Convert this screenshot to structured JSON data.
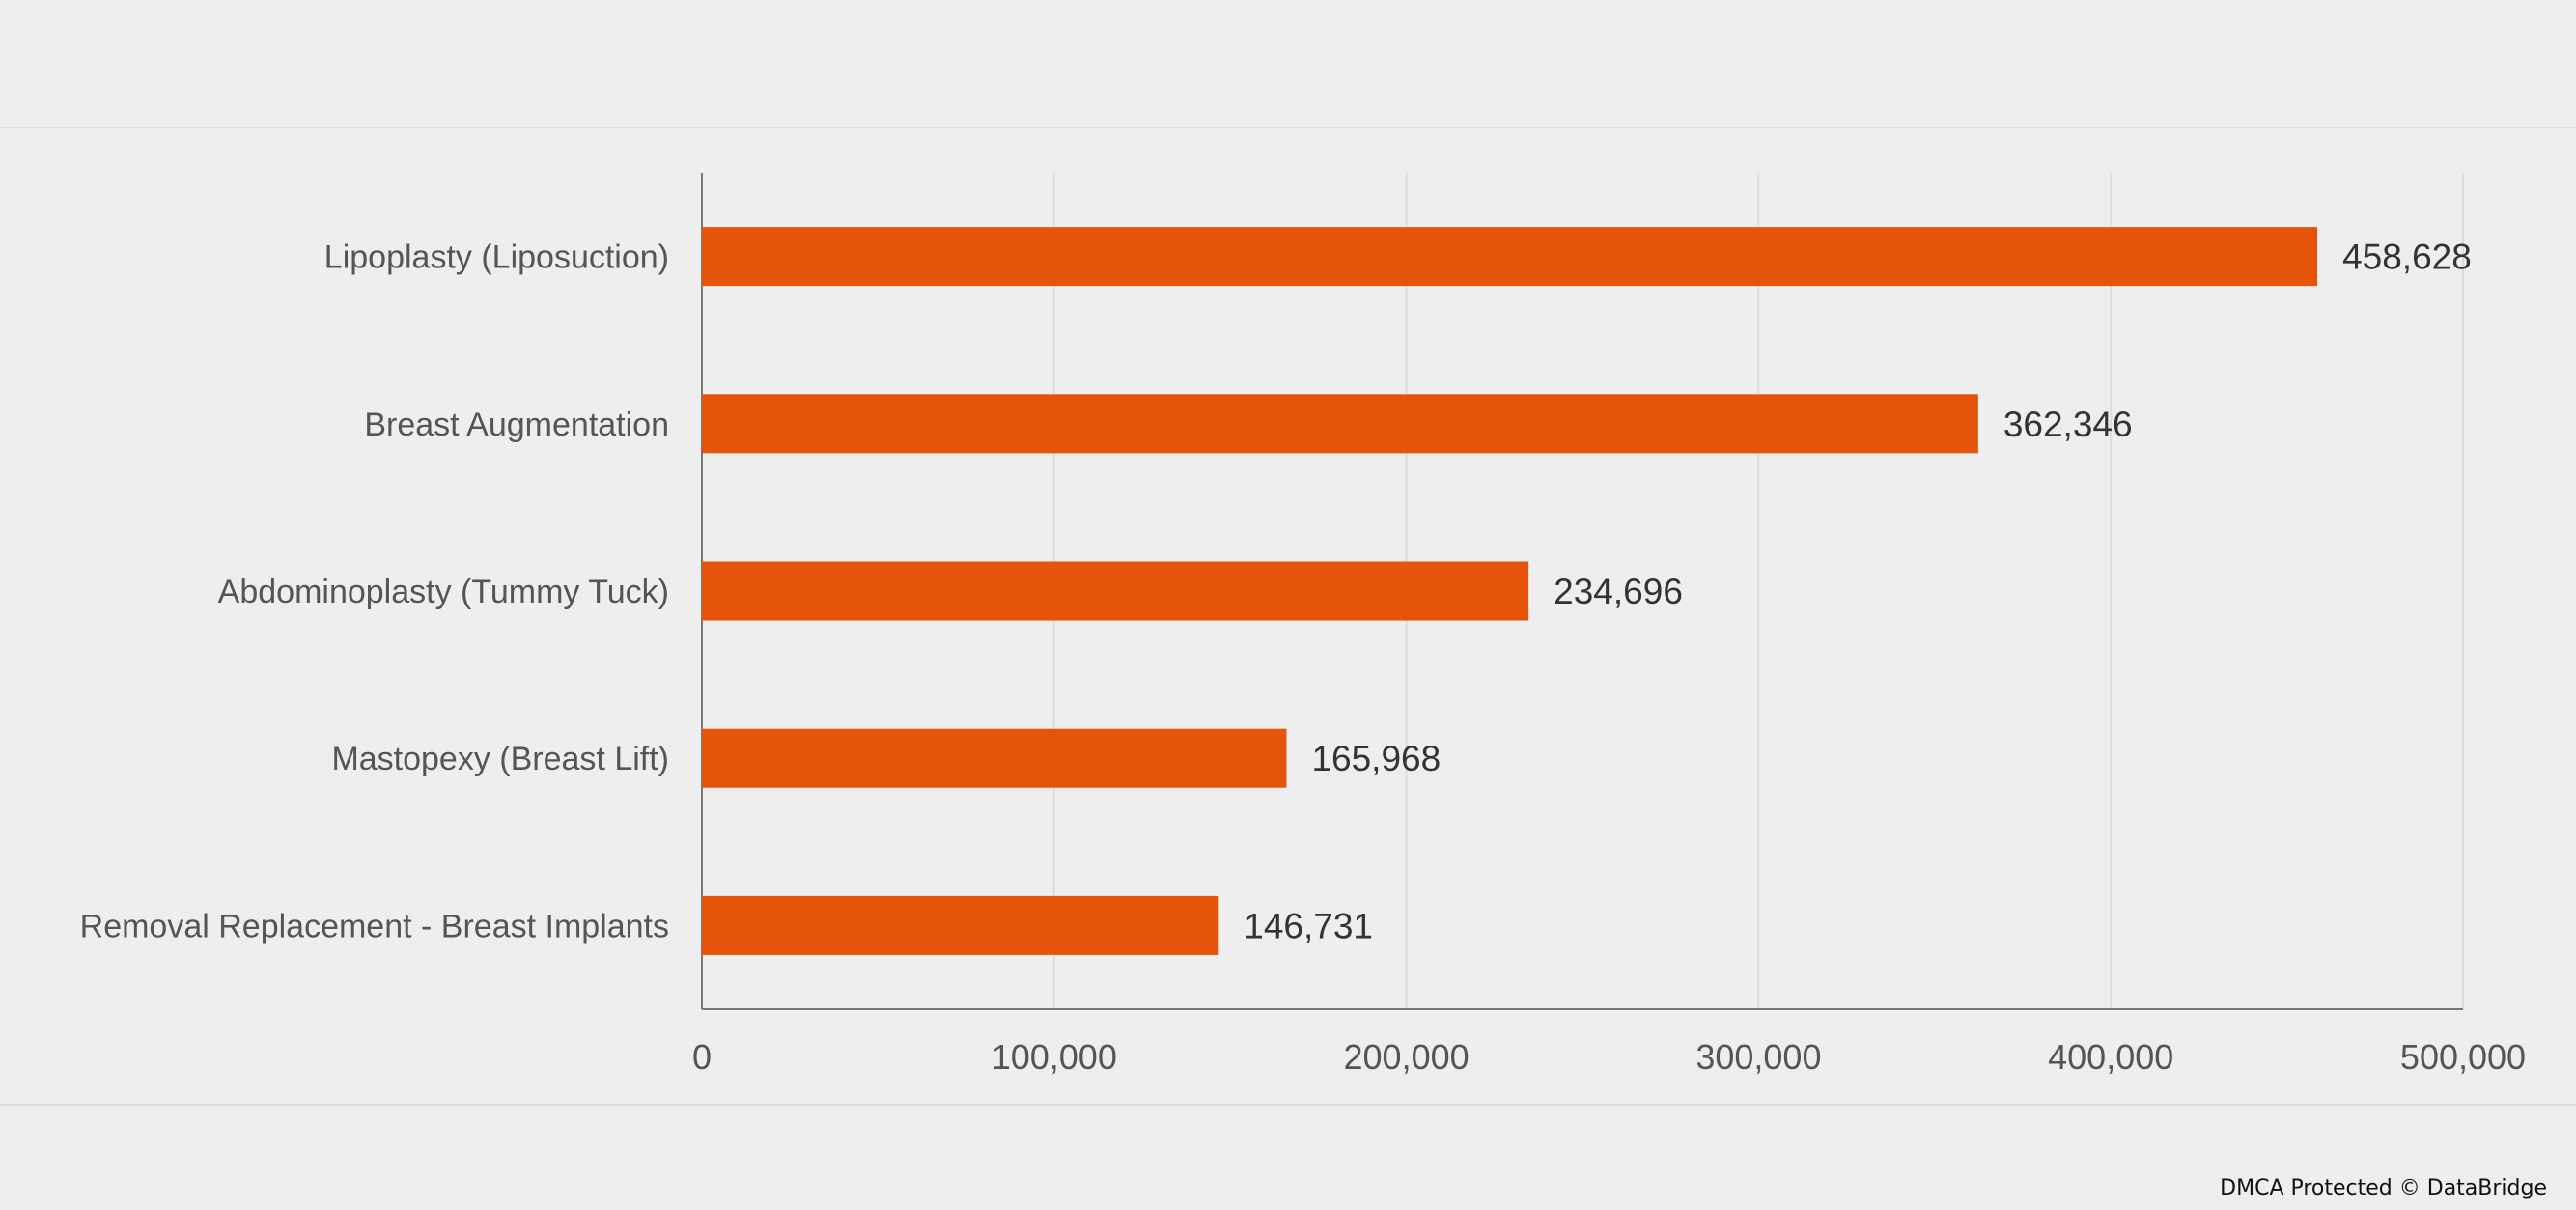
{
  "chart_data": {
    "type": "bar",
    "orientation": "horizontal",
    "categories": [
      "Lipoplasty (Liposuction)",
      "Breast Augmentation",
      "Abdominoplasty (Tummy Tuck)",
      "Mastopexy (Breast Lift)",
      "Removal Replacement - Breast Implants"
    ],
    "values": [
      458628,
      362346,
      234696,
      165968,
      146731
    ],
    "value_labels": [
      "458,628",
      "362,346",
      "234,696",
      "165,968",
      "146,731"
    ],
    "xlim": [
      0,
      500000
    ],
    "xticks": [
      0,
      100000,
      200000,
      300000,
      400000,
      500000
    ],
    "xtick_labels": [
      "0",
      "100,000",
      "200,000",
      "300,000",
      "400,000",
      "500,000"
    ],
    "grid": "vertical",
    "legend": "none",
    "title": "",
    "xlabel": "",
    "ylabel": "",
    "bar_color": "#e5540a"
  },
  "watermark": "DMCA Protected © DataBridge"
}
